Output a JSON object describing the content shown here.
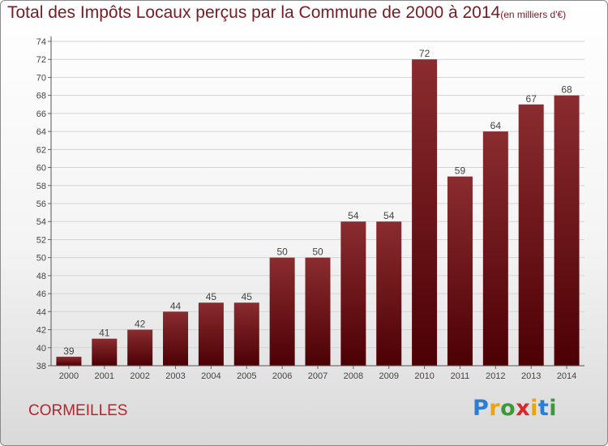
{
  "title": "Total des Impôts Locaux perçus par la Commune de 2000 à 2014",
  "title_unit": "(en milliers d'€)",
  "commune": "CORMEILLES",
  "logo": {
    "text": "Proxiti",
    "letter_colors": [
      "#2a7fd4",
      "#e8a412",
      "#3a9a3a",
      "#d8282a",
      "#e8a412",
      "#2a7fd4",
      "#3a9a3a"
    ]
  },
  "chart_data": {
    "type": "bar",
    "title": "Total des Impôts Locaux perçus par la Commune de 2000 à 2014",
    "xlabel": "",
    "ylabel": "",
    "categories": [
      "2000",
      "2001",
      "2002",
      "2003",
      "2004",
      "2005",
      "2006",
      "2007",
      "2008",
      "2009",
      "2010",
      "2011",
      "2012",
      "2013",
      "2014"
    ],
    "values": [
      39,
      41,
      42,
      44,
      45,
      45,
      50,
      50,
      54,
      54,
      72,
      59,
      64,
      67,
      68
    ],
    "ylim": [
      38,
      74
    ],
    "yticks": [
      38,
      40,
      42,
      44,
      46,
      48,
      50,
      52,
      54,
      56,
      58,
      60,
      62,
      64,
      66,
      68,
      70,
      72,
      74
    ],
    "grid": true,
    "bar_color_top": "#8a2c30",
    "bar_color_bottom": "#4c0004"
  }
}
